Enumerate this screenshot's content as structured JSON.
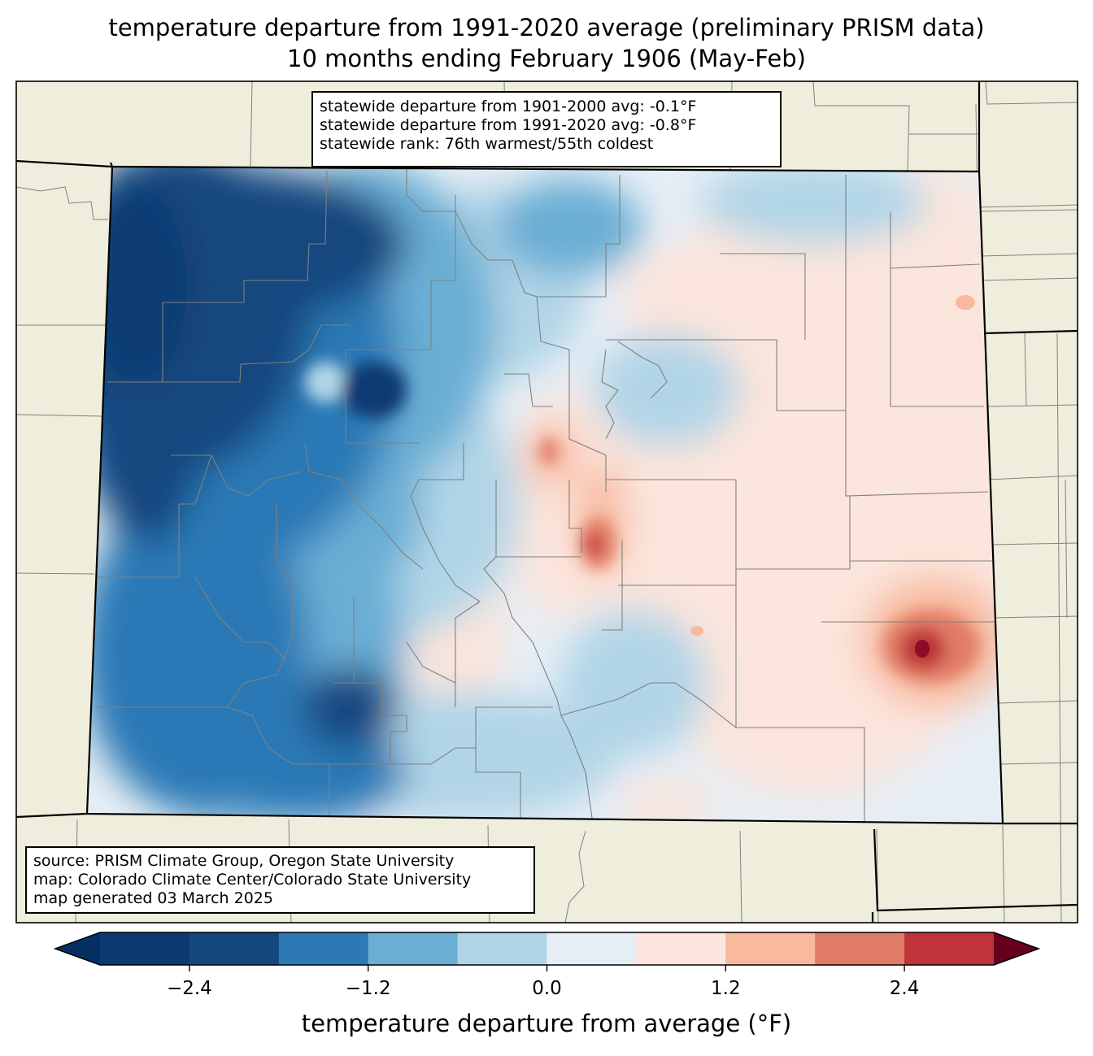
{
  "title": {
    "line1": "temperature departure from 1991-2020 average (preliminary PRISM data)",
    "line2": "10 months ending February 1906 (May-Feb)"
  },
  "stats_box": {
    "line1": "statewide departure from 1901-2000 avg: -0.1°F",
    "line2": "statewide departure from 1991-2020 avg: -0.8°F",
    "line3": "statewide rank: 76th warmest/55th coldest"
  },
  "source_box": {
    "line1": "source: PRISM Climate Group, Oregon State University",
    "line2": "map: Colorado Climate Center/Colorado State University",
    "line3": "map generated 03 March 2025"
  },
  "colorbar": {
    "label": "temperature departure from average (°F)",
    "ticks": [
      "−2.4",
      "−1.2",
      "0.0",
      "1.2",
      "2.4"
    ],
    "tick_values": [
      -2.4,
      -1.2,
      0.0,
      1.2,
      2.4
    ],
    "range": [
      -3.0,
      3.0
    ],
    "levels": [
      -3.0,
      -2.4,
      -1.8,
      -1.2,
      -0.6,
      0.0,
      0.6,
      1.2,
      1.8,
      2.4,
      3.0
    ],
    "colors": [
      "#0b3a72",
      "#15477f",
      "#2c79b6",
      "#6aaed4",
      "#b1d5e7",
      "#e6eef5",
      "#fbe5dc",
      "#f8b99d",
      "#e17d66",
      "#be3438",
      "#8c0d25"
    ],
    "under_color": "#053061",
    "over_color": "#67001f"
  },
  "map_colors": {
    "land": "#efeedc",
    "county_lines": "#808080",
    "state_lines": "#000000"
  }
}
